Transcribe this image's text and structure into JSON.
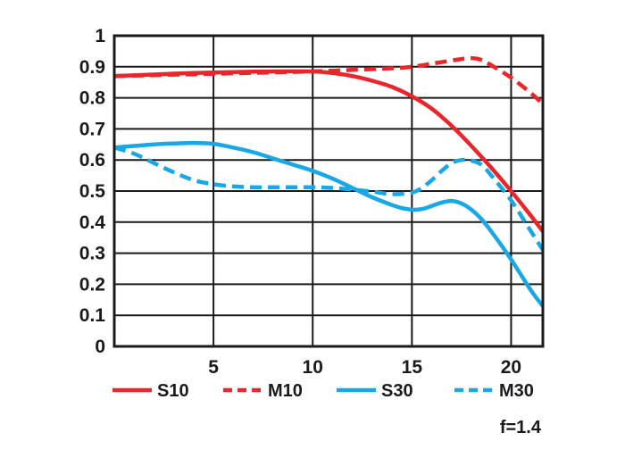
{
  "chart_data": {
    "type": "line",
    "title": "",
    "xlabel": "",
    "ylabel": "",
    "xlim": [
      0,
      21.6
    ],
    "ylim": [
      0,
      1
    ],
    "x_ticks": [
      5,
      10,
      15,
      20
    ],
    "x_tick_labels": [
      "5",
      "10",
      "15",
      "20"
    ],
    "y_ticks": [
      0,
      0.1,
      0.2,
      0.3,
      0.4,
      0.5,
      0.6,
      0.7,
      0.8,
      0.9,
      1
    ],
    "y_tick_labels": [
      "0",
      "0.1",
      "0.2",
      "0.3",
      "0.4",
      "0.5",
      "0.6",
      "0.7",
      "0.8",
      "0.9",
      "1"
    ],
    "grid": true,
    "legend_position": "bottom",
    "annotation": "f=1.4",
    "series": [
      {
        "name": "S10",
        "color": "#e8262b",
        "dash": "solid",
        "x": [
          0,
          2,
          4,
          6,
          8,
          10,
          11,
          12,
          13,
          14,
          15,
          16,
          17,
          18,
          19,
          20,
          21,
          21.6
        ],
        "y": [
          0.87,
          0.875,
          0.88,
          0.883,
          0.885,
          0.885,
          0.88,
          0.87,
          0.855,
          0.835,
          0.805,
          0.765,
          0.71,
          0.645,
          0.575,
          0.5,
          0.42,
          0.37
        ]
      },
      {
        "name": "M10",
        "color": "#e8262b",
        "dash": "dashed",
        "x": [
          0,
          2,
          4,
          6,
          8,
          10,
          12,
          14,
          15,
          16,
          17,
          17.5,
          18,
          18.5,
          19,
          20,
          21,
          21.6
        ],
        "y": [
          0.87,
          0.873,
          0.876,
          0.879,
          0.882,
          0.885,
          0.89,
          0.895,
          0.9,
          0.91,
          0.92,
          0.925,
          0.928,
          0.922,
          0.905,
          0.865,
          0.815,
          0.78
        ]
      },
      {
        "name": "S30",
        "color": "#1aa7e6",
        "dash": "solid",
        "x": [
          0,
          1,
          2,
          3,
          4,
          5,
          6,
          7,
          8,
          9,
          10,
          11,
          12,
          13,
          14,
          14.5,
          15,
          15.5,
          16,
          16.5,
          17,
          17.5,
          18,
          18.5,
          19,
          20,
          21,
          21.6
        ],
        "y": [
          0.64,
          0.645,
          0.65,
          0.653,
          0.655,
          0.652,
          0.64,
          0.625,
          0.605,
          0.585,
          0.565,
          0.54,
          0.51,
          0.48,
          0.455,
          0.445,
          0.44,
          0.442,
          0.452,
          0.463,
          0.468,
          0.46,
          0.44,
          0.41,
          0.37,
          0.28,
          0.18,
          0.13
        ]
      },
      {
        "name": "M30",
        "color": "#1aa7e6",
        "dash": "dashed",
        "x": [
          0,
          1,
          2,
          3,
          4,
          5,
          6,
          7,
          8,
          9,
          10,
          11,
          12,
          13,
          14,
          15,
          15.5,
          16,
          16.5,
          17,
          17.5,
          18,
          18.5,
          19,
          20,
          21,
          21.6
        ],
        "y": [
          0.64,
          0.62,
          0.59,
          0.56,
          0.535,
          0.522,
          0.515,
          0.512,
          0.512,
          0.512,
          0.512,
          0.51,
          0.505,
          0.498,
          0.49,
          0.495,
          0.51,
          0.535,
          0.565,
          0.59,
          0.6,
          0.598,
          0.585,
          0.55,
          0.47,
          0.37,
          0.31
        ]
      }
    ]
  }
}
